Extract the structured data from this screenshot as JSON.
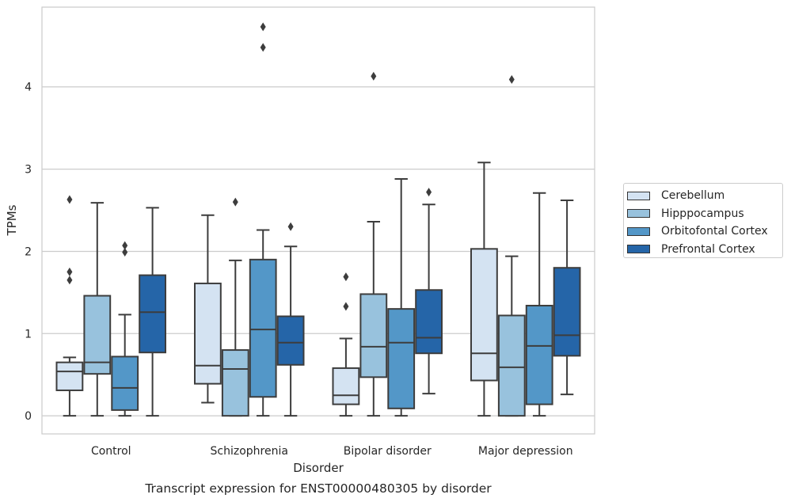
{
  "chart_data": {
    "type": "box",
    "title": "Transcript expression for ENST00000480305 by disorder",
    "xlabel": "Disorder",
    "ylabel": "TPMs",
    "ylim": [
      -0.22,
      4.97
    ],
    "yticks": [
      0,
      1,
      2,
      3,
      4
    ],
    "grid": "horizontal",
    "legend_position": "right",
    "categories": [
      "Control",
      "Schizophrenia",
      "Bipolar disorder",
      "Major depression"
    ],
    "series": [
      {
        "name": "Cerebellum",
        "color": "#d4e3f2",
        "boxes": [
          {
            "whislo": 0,
            "q1": 0.31,
            "med": 0.54,
            "q3": 0.65,
            "whishi": 0.71,
            "fliers": [
              1.65,
              1.75,
              2.63
            ]
          },
          {
            "whislo": 0.16,
            "q1": 0.39,
            "med": 0.61,
            "q3": 1.61,
            "whishi": 2.44,
            "fliers": []
          },
          {
            "whislo": 0,
            "q1": 0.14,
            "med": 0.25,
            "q3": 0.58,
            "whishi": 0.94,
            "fliers": [
              1.33,
              1.69
            ]
          },
          {
            "whislo": 0,
            "q1": 0.43,
            "med": 0.76,
            "q3": 2.03,
            "whishi": 3.08,
            "fliers": []
          }
        ]
      },
      {
        "name": "Hipppocampus",
        "color": "#98c2dd",
        "boxes": [
          {
            "whislo": 0,
            "q1": 0.51,
            "med": 0.65,
            "q3": 1.46,
            "whishi": 2.59,
            "fliers": []
          },
          {
            "whislo": 0,
            "q1": 0,
            "med": 0.57,
            "q3": 0.8,
            "whishi": 1.89,
            "fliers": [
              2.6
            ]
          },
          {
            "whislo": 0,
            "q1": 0.47,
            "med": 0.84,
            "q3": 1.48,
            "whishi": 2.36,
            "fliers": [
              4.13
            ]
          },
          {
            "whislo": 0,
            "q1": 0,
            "med": 0.59,
            "q3": 1.22,
            "whishi": 1.94,
            "fliers": [
              4.09
            ]
          }
        ]
      },
      {
        "name": "Orbitofontal Cortex",
        "color": "#5397c8",
        "boxes": [
          {
            "whislo": 0,
            "q1": 0.07,
            "med": 0.34,
            "q3": 0.72,
            "whishi": 1.23,
            "fliers": [
              1.99,
              2.07
            ]
          },
          {
            "whislo": 0,
            "q1": 0.23,
            "med": 1.05,
            "q3": 1.9,
            "whishi": 2.26,
            "fliers": [
              4.48,
              4.73
            ]
          },
          {
            "whislo": 0,
            "q1": 0.09,
            "med": 0.89,
            "q3": 1.3,
            "whishi": 2.88,
            "fliers": []
          },
          {
            "whislo": 0,
            "q1": 0.14,
            "med": 0.85,
            "q3": 1.34,
            "whishi": 2.71,
            "fliers": []
          }
        ]
      },
      {
        "name": "Prefrontal Cortex",
        "color": "#2565a8",
        "boxes": [
          {
            "whislo": 0,
            "q1": 0.77,
            "med": 1.26,
            "q3": 1.71,
            "whishi": 2.53,
            "fliers": []
          },
          {
            "whislo": 0,
            "q1": 0.62,
            "med": 0.89,
            "q3": 1.21,
            "whishi": 2.06,
            "fliers": [
              2.3
            ]
          },
          {
            "whislo": 0.27,
            "q1": 0.76,
            "med": 0.95,
            "q3": 1.53,
            "whishi": 2.57,
            "fliers": [
              2.72
            ]
          },
          {
            "whislo": 0.26,
            "q1": 0.73,
            "med": 0.98,
            "q3": 1.8,
            "whishi": 2.62,
            "fliers": []
          }
        ]
      }
    ]
  }
}
